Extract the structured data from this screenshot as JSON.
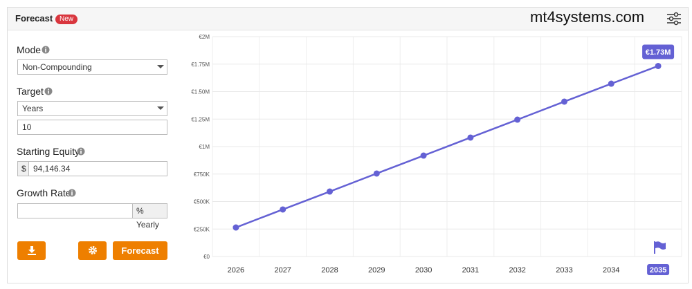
{
  "header": {
    "title": "Forecast",
    "badge": "New",
    "brand": "mt4systems.com"
  },
  "form": {
    "mode": {
      "label": "Mode",
      "value": "Non-Compounding"
    },
    "target": {
      "label": "Target",
      "value": "Years",
      "amount": "10"
    },
    "equity": {
      "label": "Starting Equity",
      "prefix": "$",
      "value": "94,146.34"
    },
    "growth": {
      "label": "Growth Rate",
      "suffix": "% Yearly"
    },
    "buttons": {
      "forecast": "Forecast"
    }
  },
  "chart_data": {
    "type": "line",
    "categories": [
      "2026",
      "2027",
      "2028",
      "2029",
      "2030",
      "2031",
      "2032",
      "2033",
      "2034",
      "2035"
    ],
    "values": [
      264000,
      428000,
      591000,
      755000,
      918000,
      1082000,
      1245000,
      1409000,
      1572000,
      1733000
    ],
    "value_labels": [
      null,
      null,
      null,
      null,
      null,
      null,
      null,
      null,
      null,
      "€1.73M"
    ],
    "color": "#6461d4",
    "ylim": [
      0,
      2000000
    ],
    "yticks": [
      {
        "value": 0,
        "label": "€0"
      },
      {
        "value": 250000,
        "label": "€250K"
      },
      {
        "value": 500000,
        "label": "€500K"
      },
      {
        "value": 750000,
        "label": "€750K"
      },
      {
        "value": 1000000,
        "label": "€1M"
      },
      {
        "value": 1250000,
        "label": "€1.25M"
      },
      {
        "value": 1500000,
        "label": "€1.50M"
      },
      {
        "value": 1750000,
        "label": "€1.75M"
      },
      {
        "value": 2000000,
        "label": "€2M"
      }
    ],
    "grid": true
  }
}
